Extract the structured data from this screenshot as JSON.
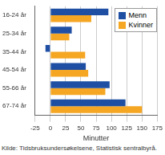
{
  "chart_data": {
    "type": "bar",
    "orientation": "horizontal",
    "categories": [
      "16-24 år",
      "25-34 år",
      "35-44 år",
      "45-54 år",
      "55-66 år",
      "67-74 år"
    ],
    "series": [
      {
        "name": "Menn",
        "color": "#1f4fa3",
        "values": [
          95,
          35,
          -8,
          58,
          97,
          123
        ]
      },
      {
        "name": "Kvinner",
        "color": "#f5a623",
        "values": [
          67,
          31,
          57,
          62,
          90,
          150
        ]
      }
    ],
    "x_label": "Minutter",
    "source": "Kilde: Tidsbruksundersøkelsene, Statistisk sentralbyrå.",
    "xlim": [
      -25,
      175
    ],
    "xticks": [
      -25,
      0,
      25,
      50,
      75,
      100,
      125,
      150,
      175
    ],
    "grid": true,
    "legend": "upper right"
  }
}
